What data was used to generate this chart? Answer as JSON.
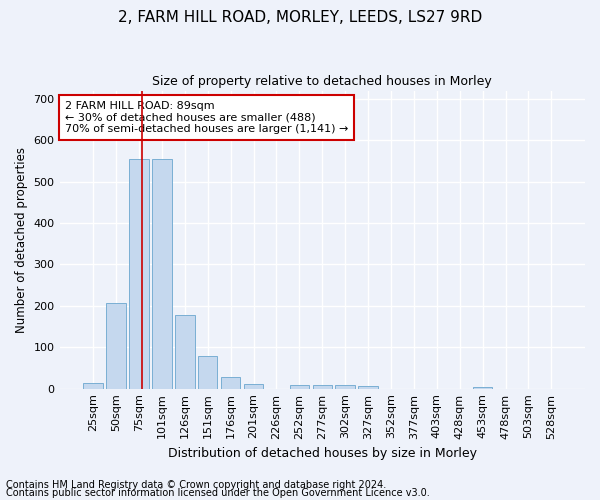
{
  "title1": "2, FARM HILL ROAD, MORLEY, LEEDS, LS27 9RD",
  "title2": "Size of property relative to detached houses in Morley",
  "xlabel": "Distribution of detached houses by size in Morley",
  "ylabel": "Number of detached properties",
  "categories": [
    "25sqm",
    "50sqm",
    "75sqm",
    "101sqm",
    "126sqm",
    "151sqm",
    "176sqm",
    "201sqm",
    "226sqm",
    "252sqm",
    "277sqm",
    "302sqm",
    "327sqm",
    "352sqm",
    "377sqm",
    "403sqm",
    "428sqm",
    "453sqm",
    "478sqm",
    "503sqm",
    "528sqm"
  ],
  "values": [
    13,
    207,
    554,
    554,
    178,
    78,
    29,
    12,
    0,
    8,
    10,
    10,
    6,
    0,
    0,
    0,
    0,
    5,
    0,
    0,
    0
  ],
  "bar_color": "#c5d8ee",
  "bar_edge_color": "#7aafd4",
  "vline_color": "#cc0000",
  "vline_x": 2.15,
  "annotation_text": "2 FARM HILL ROAD: 89sqm\n← 30% of detached houses are smaller (488)\n70% of semi-detached houses are larger (1,141) →",
  "annotation_box_color": "#ffffff",
  "annotation_box_edge_color": "#cc0000",
  "ylim": [
    0,
    720
  ],
  "yticks": [
    0,
    100,
    200,
    300,
    400,
    500,
    600,
    700
  ],
  "footer1": "Contains HM Land Registry data © Crown copyright and database right 2024.",
  "footer2": "Contains public sector information licensed under the Open Government Licence v3.0.",
  "bg_color": "#eef2fa",
  "plot_bg_color": "#eef2fa",
  "grid_color": "#ffffff",
  "title1_fontsize": 11,
  "title2_fontsize": 9,
  "xlabel_fontsize": 9,
  "ylabel_fontsize": 8.5,
  "tick_fontsize": 8,
  "annot_fontsize": 8,
  "footer_fontsize": 7
}
